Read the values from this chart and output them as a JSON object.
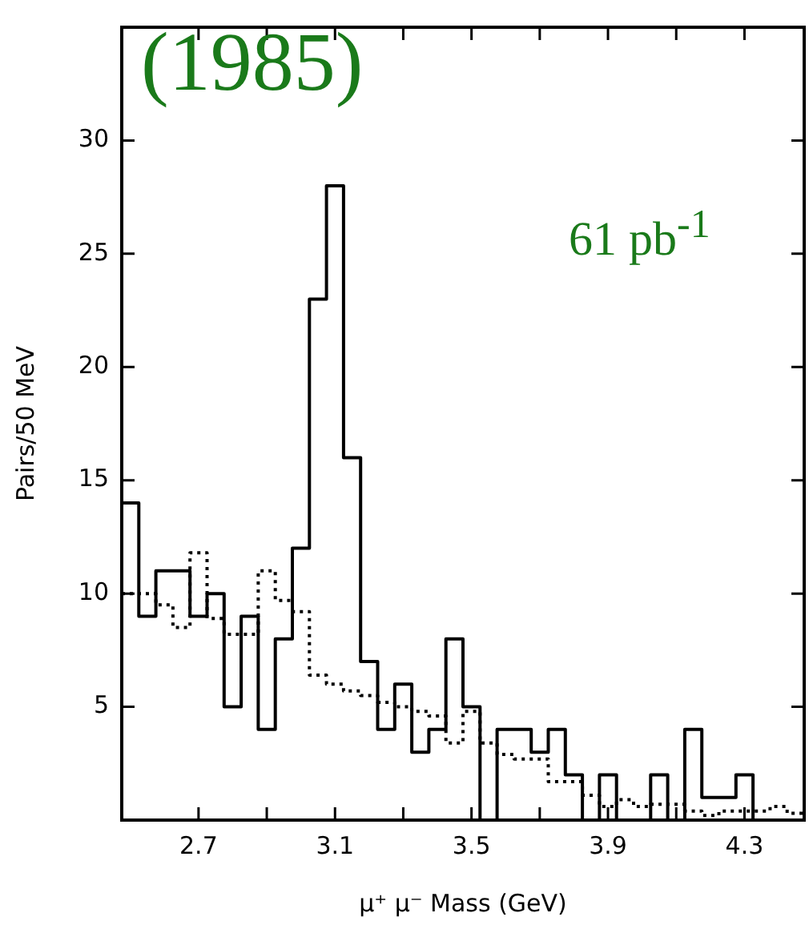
{
  "chart_data": {
    "type": "histogram",
    "xlabel": "μ⁺ μ⁻ Mass (GeV)",
    "ylabel": "Pairs/50 MeV",
    "annotations": [
      "(1985)",
      "61 pb$^{-1}$"
    ],
    "bins": [
      2.475,
      2.525,
      2.575,
      2.625,
      2.675,
      2.725,
      2.775,
      2.825,
      2.875,
      2.925,
      2.975,
      3.025,
      3.075,
      3.125,
      3.175,
      3.225,
      3.275,
      3.325,
      3.375,
      3.425,
      3.475,
      3.525,
      3.575,
      3.625,
      3.675,
      3.725,
      3.775,
      3.825,
      3.875,
      3.925,
      3.975,
      4.025,
      4.075,
      4.125,
      4.175,
      4.225,
      4.275,
      4.325,
      4.375,
      4.425,
      4.475
    ],
    "series": [
      {
        "color": "#000000",
        "line_style": "solid",
        "values": [
          14,
          9,
          11,
          11,
          9,
          10,
          5,
          9,
          4,
          8,
          12,
          23,
          28,
          16,
          7,
          4,
          6,
          3,
          4,
          8,
          5,
          0,
          4,
          4,
          3,
          4,
          2,
          0,
          2,
          0,
          0,
          2,
          0,
          4,
          1,
          1,
          2,
          0,
          0,
          0
        ]
      },
      {
        "color": "#000000",
        "line_style": "dotted",
        "values": [
          10,
          10,
          9.5,
          8.5,
          11.8,
          8.9,
          8.2,
          8.2,
          11,
          9.7,
          9.2,
          6.4,
          6,
          5.7,
          5.5,
          5.2,
          5,
          4.8,
          4.6,
          3.4,
          4.8,
          3.4,
          2.9,
          2.7,
          2.7,
          1.7,
          1.7,
          1.1,
          0.6,
          0.9,
          0.6,
          0.7,
          0.7,
          0.4,
          0.2,
          0.4,
          0.4,
          0.4,
          0.6,
          0.3
        ]
      }
    ],
    "xlim": [
      2.475,
      4.475
    ],
    "xticks": [
      2.7,
      {
        "value": 2.9,
        "label": null
      },
      3.1,
      {
        "value": 3.3,
        "label": null
      },
      3.5,
      {
        "value": 3.7,
        "label": null
      },
      3.9,
      {
        "value": 4.1,
        "label": null
      },
      4.3
    ],
    "ylim": [
      0,
      35
    ],
    "yticks": [
      5,
      10,
      15,
      20,
      25,
      30
    ],
    "grid": false,
    "legend": false
  }
}
